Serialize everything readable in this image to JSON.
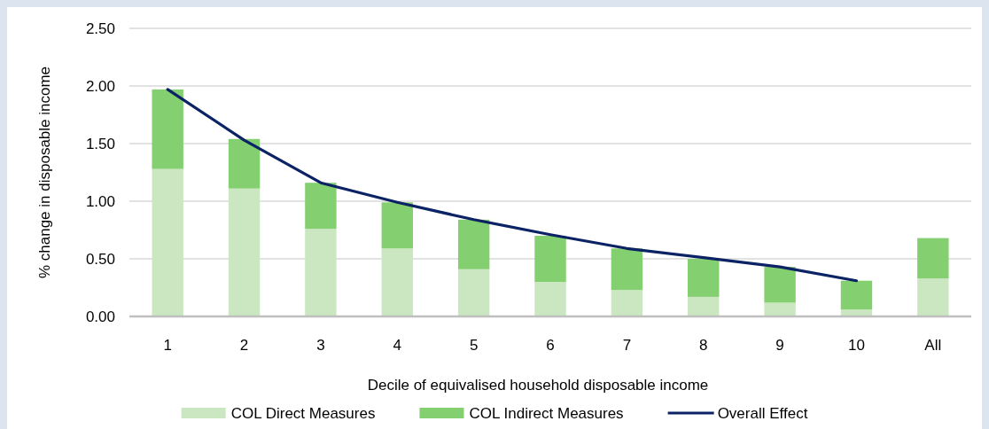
{
  "chart_data": {
    "type": "bar",
    "stacked": true,
    "xlabel": "Decile of equivalised household disposable income",
    "ylabel": "% change in disposable income",
    "categories": [
      "1",
      "2",
      "3",
      "4",
      "5",
      "6",
      "7",
      "8",
      "9",
      "10",
      "All"
    ],
    "series": [
      {
        "name": "COL Direct Measures",
        "color": "#cbe7c1",
        "values": [
          1.28,
          1.11,
          0.76,
          0.59,
          0.41,
          0.3,
          0.23,
          0.17,
          0.12,
          0.06,
          0.33
        ]
      },
      {
        "name": "COL Indirect Measures",
        "color": "#84cf70",
        "values": [
          0.69,
          0.43,
          0.4,
          0.4,
          0.43,
          0.4,
          0.36,
          0.33,
          0.31,
          0.25,
          0.35
        ]
      },
      {
        "name": "Overall Effect",
        "type": "line",
        "color": "#0b2265",
        "values": [
          1.97,
          1.53,
          1.16,
          0.99,
          0.84,
          0.71,
          0.59,
          0.51,
          0.43,
          0.31,
          null
        ]
      }
    ],
    "ylim": [
      0,
      2.5
    ],
    "yticks": [
      {
        "value": 0,
        "label": "0.00"
      },
      {
        "value": 0.5,
        "label": "0.50"
      },
      {
        "value": 1,
        "label": "1.00"
      },
      {
        "value": 1.5,
        "label": "1.50"
      },
      {
        "value": 2,
        "label": "2.00"
      },
      {
        "value": 2.5,
        "label": "2.50"
      }
    ],
    "grid": "y",
    "legend": "bottom"
  }
}
